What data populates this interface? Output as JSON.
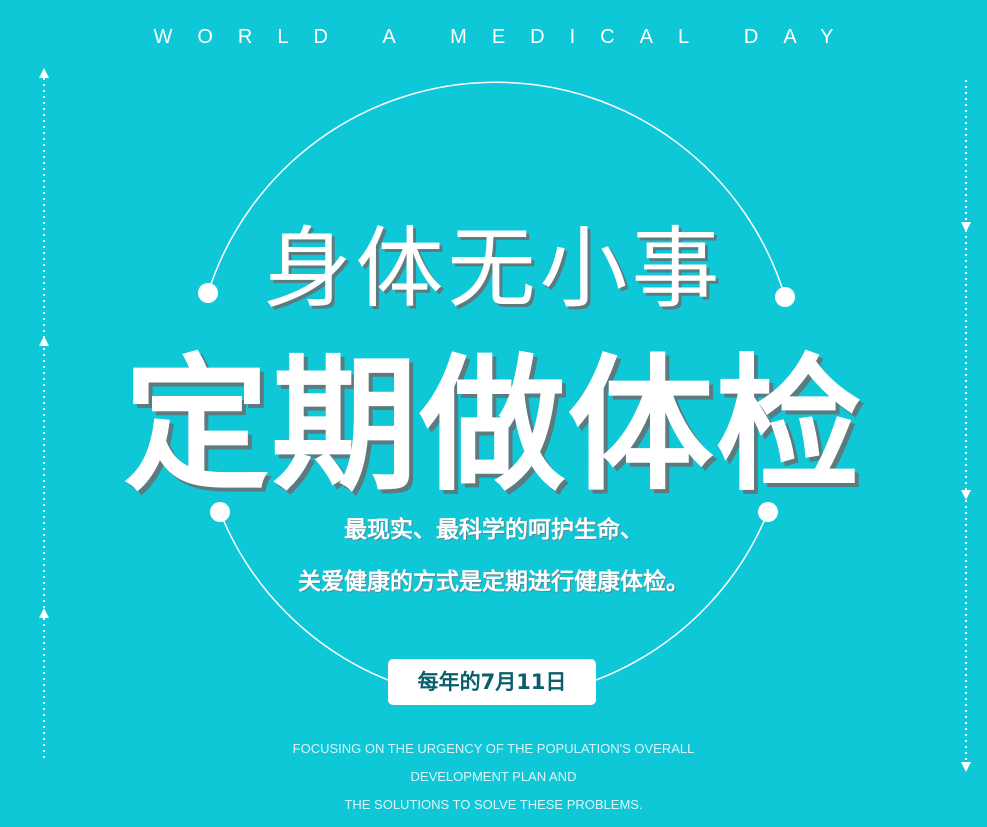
{
  "header": "WORLD A MEDICAL DAY",
  "title": "身体无小事",
  "headline": "定期做体检",
  "subtitle": [
    "最现实、最科学的呵护生命、",
    "关爱健康的方式是定期进行健康体检。"
  ],
  "date": "每年的7月11日",
  "footer": [
    "FOCUSING ON THE URGENCY OF THE POPULATION'S OVERALL",
    "DEVELOPMENT PLAN AND",
    "THE SOLUTIONS TO SOLVE THESE PROBLEMS."
  ]
}
